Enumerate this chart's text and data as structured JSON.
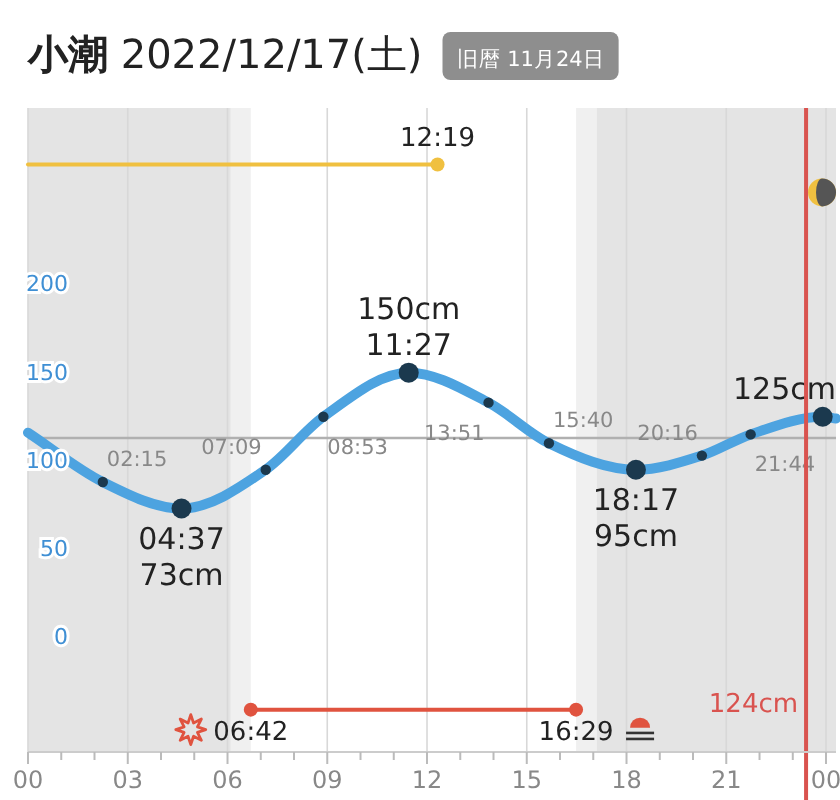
{
  "chart_data": {
    "type": "line",
    "title": "**小潮** 2022/12/17(土)",
    "subtitle": "旧暦 11月24日",
    "xlim": [
      0,
      24.3
    ],
    "ylim": [
      -65,
      300
    ],
    "xticks": [
      {
        "value": 0,
        "label": "00"
      },
      {
        "value": 1,
        "label": null
      },
      {
        "value": 2,
        "label": null
      },
      {
        "value": 3,
        "label": "03"
      },
      {
        "value": 4,
        "label": null
      },
      {
        "value": 5,
        "label": null
      },
      {
        "value": 6,
        "label": "06"
      },
      {
        "value": 7,
        "label": null
      },
      {
        "value": 8,
        "label": null
      },
      {
        "value": 9,
        "label": "09"
      },
      {
        "value": 10,
        "label": null
      },
      {
        "value": 11,
        "label": null
      },
      {
        "value": 12,
        "label": "12"
      },
      {
        "value": 13,
        "label": null
      },
      {
        "value": 14,
        "label": null
      },
      {
        "value": 15,
        "label": "15"
      },
      {
        "value": 16,
        "label": null
      },
      {
        "value": 17,
        "label": null
      },
      {
        "value": 18,
        "label": "18"
      },
      {
        "value": 19,
        "label": null
      },
      {
        "value": 20,
        "label": null
      },
      {
        "value": 21,
        "label": "21"
      },
      {
        "value": 22,
        "label": null
      },
      {
        "value": 23,
        "label": null
      },
      {
        "value": 24,
        "label": "00"
      }
    ],
    "yticks": [
      0,
      50,
      100,
      150,
      200
    ],
    "grid": "x",
    "series": [
      {
        "color": "#4da3e0",
        "x": [
          0,
          2.25,
          4.617,
          7.15,
          8.883,
          11.45,
          13.85,
          15.667,
          18.283,
          20.267,
          21.733,
          23.9,
          24.3
        ],
        "values": [
          116,
          88,
          73,
          95,
          125,
          150,
          133,
          110,
          95,
          103,
          115,
          125,
          124
        ],
        "marker": "circle"
      },
      {
        "color": "#f0c040",
        "x": [
          0,
          12.317
        ],
        "values": [
          268,
          268
        ],
        "marker": "circle"
      },
      {
        "color": "#e0533f",
        "x": [
          6.7,
          16.483
        ],
        "values": [
          -41,
          -41
        ],
        "marker": "circle"
      }
    ],
    "annotations": [
      {
        "text": "02:15",
        "x": 2.25,
        "y": 88
      },
      {
        "text": "04:37\n73cm",
        "x": 4.617,
        "y": 73
      },
      {
        "text": "07:09",
        "x": 7.15,
        "y": 95
      },
      {
        "text": "08:53",
        "x": 8.883,
        "y": 125
      },
      {
        "text": "150cm\n11:27",
        "x": 11.45,
        "y": 150
      },
      {
        "text": "13:51",
        "x": 13.85,
        "y": 133
      },
      {
        "text": "15:40",
        "x": 15.667,
        "y": 110
      },
      {
        "text": "18:17\n95cm",
        "x": 18.283,
        "y": 95
      },
      {
        "text": "20:16",
        "x": 20.267,
        "y": 103
      },
      {
        "text": "21:44",
        "x": 21.733,
        "y": 115
      },
      {
        "text": "125cm",
        "x": 23.9,
        "y": 125
      },
      {
        "text": "12:19",
        "x": 12.317,
        "y": 268
      },
      {
        "text": "06:42",
        "x": 6.7,
        "y": -41
      },
      {
        "text": "16:29",
        "x": 16.483,
        "y": -41
      }
    ],
    "bands": [
      {
        "axis": "x",
        "from": 0,
        "to": 6.1,
        "color": "#e4e4e4"
      },
      {
        "axis": "x",
        "from": 6.1,
        "to": 6.7,
        "color": "#f0f0f0"
      },
      {
        "axis": "x",
        "from": 16.483,
        "to": 17.1,
        "color": "#f0f0f0"
      },
      {
        "axis": "x",
        "from": 17.1,
        "to": 24.3,
        "color": "#e4e4e4"
      }
    ],
    "ref_lines": [
      {
        "axis": "y",
        "value": 113,
        "color": "#b0b0b0"
      },
      {
        "axis": "x",
        "value": 23.4,
        "label": "124cm",
        "color": "#d9534f"
      }
    ]
  }
}
